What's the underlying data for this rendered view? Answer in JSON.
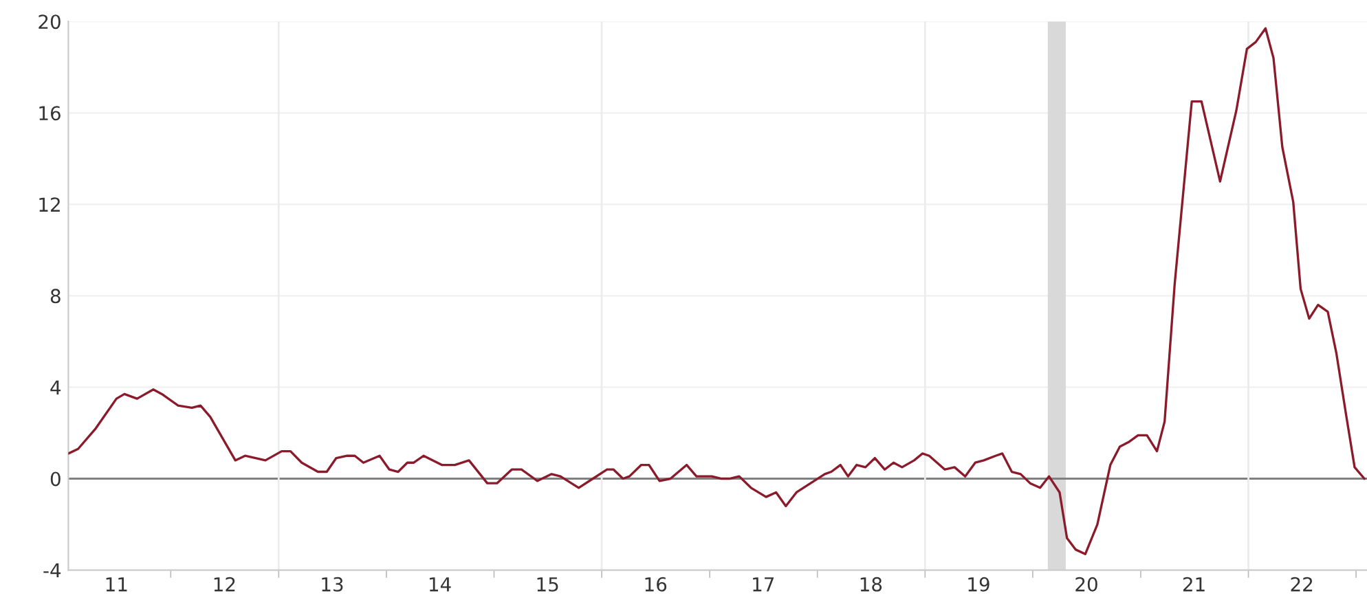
{
  "chart_data": {
    "type": "line",
    "x": [
      "2011-01-19",
      "2011-02-21",
      "2011-04-22",
      "2011-07-01",
      "2011-07-28",
      "2011-09-09",
      "2011-11-03",
      "2011-12-02",
      "2012-01-26",
      "2012-03-13",
      "2012-04-11",
      "2012-05-14",
      "2012-08-07",
      "2012-09-09",
      "2012-10-15",
      "2012-11-17",
      "2013-01-11",
      "2013-02-10",
      "2013-03-20",
      "2013-05-14",
      "2013-06-13",
      "2013-07-15",
      "2013-08-21",
      "2013-09-16",
      "2013-10-15",
      "2013-12-09",
      "2014-01-11",
      "2014-02-10",
      "2014-03-13",
      "2014-04-04",
      "2014-05-07",
      "2014-07-08",
      "2014-08-21",
      "2014-10-08",
      "2014-12-09",
      "2015-01-11",
      "2015-03-02",
      "2015-04-04",
      "2015-05-28",
      "2015-07-15",
      "2015-08-14",
      "2015-10-15",
      "2015-12-02",
      "2016-01-19",
      "2016-02-10",
      "2016-03-13",
      "2016-04-04",
      "2016-05-14",
      "2016-06-09",
      "2016-07-15",
      "2016-08-21",
      "2016-10-15",
      "2016-11-17",
      "2017-01-08",
      "2017-02-10",
      "2017-03-09",
      "2017-04-11",
      "2017-05-21",
      "2017-07-11",
      "2017-08-14",
      "2017-09-16",
      "2017-10-22",
      "2017-12-09",
      "2018-01-26",
      "2018-02-17",
      "2018-03-20",
      "2018-04-15",
      "2018-05-14",
      "2018-06-13",
      "2018-07-15",
      "2018-08-17",
      "2018-09-16",
      "2018-10-15",
      "2018-11-25",
      "2018-12-23",
      "2019-01-15",
      "2019-03-09",
      "2019-04-11",
      "2019-05-17",
      "2019-06-20",
      "2019-07-19",
      "2019-08-28",
      "2019-09-20",
      "2019-10-22",
      "2019-11-21",
      "2019-12-23",
      "2020-01-26",
      "2020-02-25",
      "2020-04-01",
      "2020-04-26",
      "2020-05-25",
      "2020-06-27",
      "2020-08-07",
      "2020-09-20",
      "2020-10-22",
      "2020-11-21",
      "2020-12-23",
      "2021-01-22",
      "2021-02-25",
      "2021-03-23",
      "2021-04-26",
      "2021-05-25",
      "2021-06-23",
      "2021-07-26",
      "2021-09-27",
      "2021-11-21",
      "2021-12-27",
      "2022-01-26",
      "2022-02-28",
      "2022-03-27",
      "2022-04-26",
      "2022-06-02",
      "2022-06-27",
      "2022-07-26",
      "2022-08-25",
      "2022-09-27",
      "2022-10-26",
      "2022-11-28",
      "2022-12-27",
      "2023-01-29"
    ],
    "series": [
      {
        "color": "#8b1a2b",
        "values": [
          1.1,
          1.3,
          2.2,
          3.5,
          3.7,
          3.5,
          3.9,
          3.7,
          3.2,
          3.1,
          3.2,
          2.7,
          0.8,
          1.0,
          0.9,
          0.8,
          1.2,
          1.2,
          0.7,
          0.3,
          0.3,
          0.9,
          1.0,
          1.0,
          0.7,
          1.0,
          0.4,
          0.3,
          0.7,
          0.7,
          1.0,
          0.6,
          0.6,
          0.8,
          -0.2,
          -0.2,
          0.4,
          0.4,
          -0.1,
          0.2,
          0.1,
          -0.4,
          0.0,
          0.4,
          0.4,
          0.0,
          0.1,
          0.6,
          0.6,
          -0.1,
          0.0,
          0.6,
          0.1,
          0.1,
          0.0,
          0.0,
          0.1,
          -0.4,
          -0.8,
          -0.6,
          -1.2,
          -0.6,
          -0.2,
          0.2,
          0.3,
          0.6,
          0.1,
          0.6,
          0.5,
          0.9,
          0.4,
          0.7,
          0.5,
          0.8,
          1.1,
          1.0,
          0.4,
          0.5,
          0.1,
          0.7,
          0.8,
          1.0,
          1.1,
          0.3,
          0.2,
          -0.2,
          -0.4,
          0.1,
          -0.6,
          -2.6,
          -3.1,
          -3.3,
          -2.0,
          0.6,
          1.4,
          1.6,
          1.9,
          1.9,
          1.2,
          2.5,
          8.5,
          12.5,
          16.5,
          16.5,
          13.0,
          16.1,
          18.8,
          19.1,
          19.7,
          18.4,
          14.5,
          12.1,
          8.3,
          7.0,
          7.6,
          7.3,
          5.5,
          2.8,
          0.5,
          0.0
        ]
      }
    ],
    "xlim": [
      "2011-01-19",
      "2023-02-07"
    ],
    "xticks": [
      {
        "value": "2011-07-01",
        "label": "11"
      },
      {
        "value": "2012-07-01",
        "label": "12"
      },
      {
        "value": "2013-07-01",
        "label": "13"
      },
      {
        "value": "2014-07-01",
        "label": "14"
      },
      {
        "value": "2015-07-01",
        "label": "15"
      },
      {
        "value": "2016-07-01",
        "label": "16"
      },
      {
        "value": "2017-07-01",
        "label": "17"
      },
      {
        "value": "2018-07-01",
        "label": "18"
      },
      {
        "value": "2019-07-01",
        "label": "19"
      },
      {
        "value": "2020-07-01",
        "label": "20"
      },
      {
        "value": "2021-07-01",
        "label": "21"
      },
      {
        "value": "2022-07-01",
        "label": "22"
      },
      {
        "value": "2012-01-01",
        "label": null
      },
      {
        "value": "2013-01-01",
        "label": null
      },
      {
        "value": "2014-01-01",
        "label": null
      },
      {
        "value": "2015-01-01",
        "label": null
      },
      {
        "value": "2016-01-01",
        "label": null
      },
      {
        "value": "2017-01-01",
        "label": null
      },
      {
        "value": "2018-01-01",
        "label": null
      },
      {
        "value": "2019-01-01",
        "label": null
      },
      {
        "value": "2020-01-01",
        "label": null
      },
      {
        "value": "2021-01-01",
        "label": null
      },
      {
        "value": "2022-01-01",
        "label": null
      },
      {
        "value": "2023-01-01",
        "label": null
      }
    ],
    "ylim": [
      -4,
      20
    ],
    "yticks": [
      -4,
      0,
      4,
      8,
      12,
      16,
      20
    ],
    "grid": "y",
    "ref_lines": [
      {
        "axis": "y",
        "value": 0,
        "color": "#808080"
      },
      {
        "axis": "x",
        "value": "2013-01-01",
        "color": "#ececec"
      },
      {
        "axis": "x",
        "value": "2016-01-01",
        "color": "#ececec"
      },
      {
        "axis": "x",
        "value": "2019-01-01",
        "color": "#ececec"
      },
      {
        "axis": "x",
        "value": "2022-01-01",
        "color": "#ececec"
      }
    ],
    "bands": [
      {
        "axis": "x",
        "from": "2020-02-21",
        "to": "2020-04-22",
        "color": "#d9d9d9"
      }
    ]
  }
}
